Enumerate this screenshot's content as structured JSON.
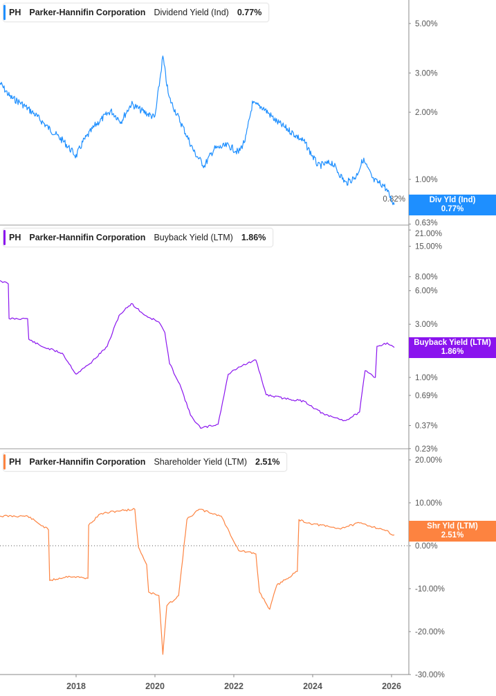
{
  "chart_data": [
    {
      "type": "line",
      "ticker": "PH",
      "company": "Parker-Hannifin Corporation",
      "metric": "Dividend Yield (Ind)",
      "current_value": "0.77%",
      "badge_label": "Div Yld (Ind)",
      "color": "#1e8fff",
      "y_scale": "log",
      "ylim": [
        0.63,
        5.8
      ],
      "y_ticks": [
        "5.00%",
        "3.00%",
        "2.00%",
        "1.00%",
        "0.82%",
        "0.63%"
      ],
      "y_tick_values": [
        5,
        3,
        2,
        1,
        0.82,
        0.63
      ],
      "series": {
        "x": [
          2016.07,
          2016.33,
          2016.6,
          2016.95,
          2017.3,
          2017.7,
          2018.0,
          2018.17,
          2018.5,
          2018.88,
          2019.14,
          2019.4,
          2019.67,
          2020.0,
          2020.2,
          2020.35,
          2020.72,
          2021.0,
          2021.25,
          2021.5,
          2021.86,
          2022.12,
          2022.3,
          2022.47,
          2022.74,
          2023.08,
          2023.44,
          2023.79,
          2024.14,
          2024.49,
          2024.84,
          2025.1,
          2025.28,
          2025.54,
          2025.81,
          2026.07
        ],
        "y": [
          2.7,
          2.34,
          2.2,
          1.96,
          1.7,
          1.47,
          1.27,
          1.47,
          1.76,
          2.03,
          1.82,
          2.18,
          2.03,
          1.89,
          3.55,
          2.34,
          1.7,
          1.32,
          1.15,
          1.37,
          1.42,
          1.32,
          1.52,
          2.18,
          2.1,
          1.82,
          1.64,
          1.47,
          1.15,
          1.19,
          0.96,
          1.03,
          1.23,
          0.99,
          0.94,
          0.77
        ]
      }
    },
    {
      "type": "line",
      "ticker": "PH",
      "company": "Parker-Hannifin Corporation",
      "metric": "Buyback Yield (LTM)",
      "current_value": "1.86%",
      "badge_label": "Buyback Yield (LTM)",
      "color": "#8a14ee",
      "y_scale": "log",
      "ylim": [
        0.23,
        21
      ],
      "y_ticks": [
        "21.00%",
        "15.00%",
        "8.00%",
        "6.00%",
        "3.00%",
        "1.00%",
        "0.69%",
        "0.37%",
        "0.23%"
      ],
      "y_tick_values": [
        21,
        15,
        8,
        6,
        3,
        1,
        0.69,
        0.37,
        0.23
      ],
      "series": {
        "x": [
          2016.07,
          2016.28,
          2016.3,
          2016.77,
          2016.8,
          2017.12,
          2017.65,
          2018.0,
          2018.35,
          2018.79,
          2019.09,
          2019.4,
          2019.75,
          2020.1,
          2020.25,
          2020.37,
          2020.63,
          2020.9,
          2021.16,
          2021.6,
          2021.86,
          2022.12,
          2022.56,
          2022.82,
          2023.26,
          2023.79,
          2024.31,
          2024.84,
          2025.19,
          2025.33,
          2025.59,
          2025.63,
          2025.89,
          2026.07
        ],
        "y": [
          7.4,
          6.9,
          3.37,
          3.37,
          2.2,
          1.9,
          1.65,
          1.07,
          1.33,
          1.9,
          3.6,
          4.6,
          3.6,
          3.14,
          2.53,
          1.33,
          0.87,
          0.46,
          0.35,
          0.38,
          1.07,
          1.24,
          1.43,
          0.7,
          0.65,
          0.61,
          0.46,
          0.41,
          0.49,
          1.15,
          1.0,
          1.9,
          2.04,
          1.86
        ]
      }
    },
    {
      "type": "line",
      "ticker": "PH",
      "company": "Parker-Hannifin Corporation",
      "metric": "Shareholder Yield (LTM)",
      "current_value": "2.51%",
      "badge_label": "Shr Yld (LTM)",
      "color": "#fd8340",
      "y_scale": "linear",
      "ylim": [
        -30,
        20
      ],
      "y_ticks": [
        "20.00%",
        "10.00%",
        "0.00%",
        "-10.00%",
        "-20.00%",
        "-30.00%"
      ],
      "y_tick_values": [
        20,
        10,
        0,
        -10,
        -20,
        -30
      ],
      "zero_line": "dotted",
      "x_ticks": [
        "2018",
        "2020",
        "2022",
        "2024",
        "2026"
      ],
      "x_tick_values": [
        2018,
        2020,
        2022,
        2024,
        2026
      ],
      "series": {
        "x": [
          2016.07,
          2016.77,
          2017.3,
          2017.33,
          2017.82,
          2018.3,
          2018.32,
          2018.61,
          2019.05,
          2019.49,
          2019.58,
          2019.79,
          2019.84,
          2020.1,
          2020.2,
          2020.3,
          2020.6,
          2020.81,
          2021.12,
          2021.68,
          2022.12,
          2022.56,
          2022.65,
          2022.91,
          2023.09,
          2023.61,
          2023.65,
          2023.88,
          2024.67,
          2025.19,
          2025.81,
          2026.07
        ],
        "y": [
          6.9,
          6.9,
          3.7,
          -8.1,
          -7.1,
          -7.6,
          4.8,
          7.4,
          8.1,
          8.5,
          -0.3,
          -4.4,
          -10.8,
          -11.6,
          -25.3,
          -14,
          -11.6,
          6.1,
          8.5,
          6.9,
          -1.1,
          -1.9,
          -10.8,
          -14.8,
          -9.2,
          -6.0,
          6.1,
          5.3,
          4.0,
          5.3,
          3.7,
          2.51
        ]
      }
    }
  ]
}
